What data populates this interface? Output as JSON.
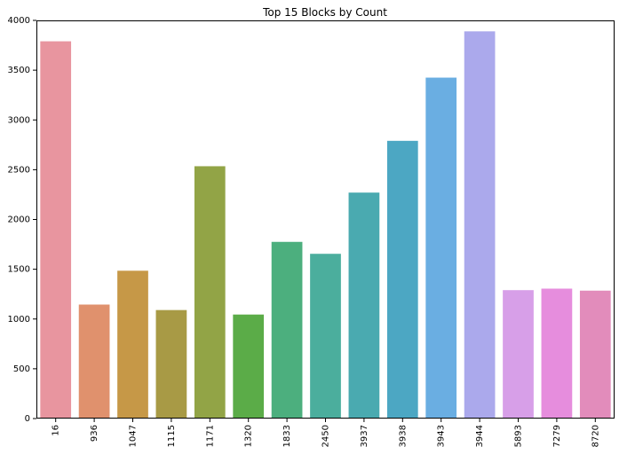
{
  "chart_data": {
    "type": "bar",
    "title": "Top 15 Blocks by Count",
    "xlabel": "",
    "ylabel": "",
    "categories": [
      "16",
      "936",
      "1047",
      "1115",
      "1171",
      "1320",
      "1833",
      "2450",
      "3937",
      "3938",
      "3943",
      "3944",
      "5893",
      "7279",
      "8720"
    ],
    "values": [
      3790,
      1145,
      1485,
      1090,
      2535,
      1045,
      1775,
      1655,
      2270,
      2790,
      3425,
      3890,
      1290,
      1305,
      1285
    ],
    "colors": [
      "#e8959f",
      "#e0916d",
      "#c69847",
      "#a89a45",
      "#92a446",
      "#5bac48",
      "#4caf7e",
      "#4bae9d",
      "#4aaab0",
      "#4ca7c3",
      "#6aaee2",
      "#aba9ec",
      "#d79fe8",
      "#e68ddd",
      "#e28cbb"
    ],
    "ylim": [
      0,
      4000
    ],
    "yticks": [
      "0",
      "500",
      "1000",
      "1500",
      "2000",
      "2500",
      "3000",
      "3500",
      "4000"
    ],
    "grid": false,
    "legend": "none"
  }
}
